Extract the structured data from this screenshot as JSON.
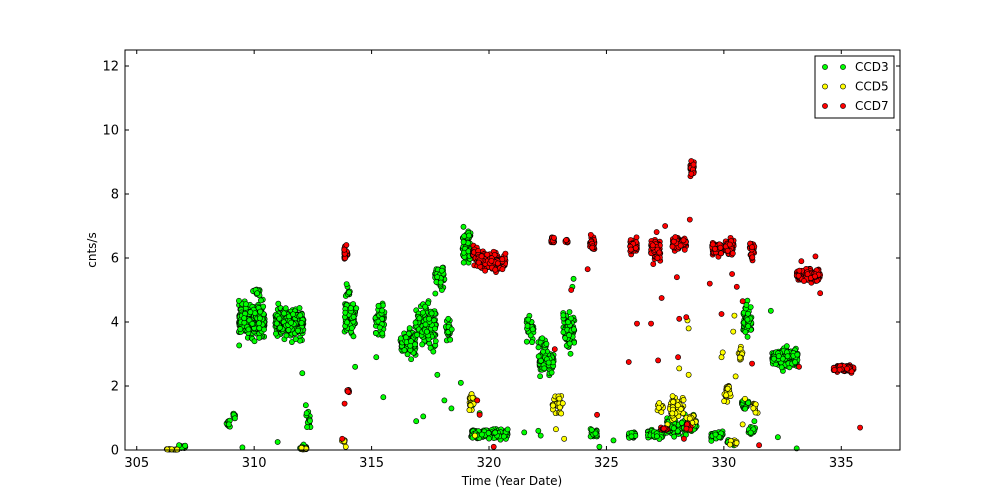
{
  "chart_data": {
    "type": "scatter",
    "title": "",
    "xlabel": "Time (Year Date)",
    "ylabel": "cnts/s",
    "xlim": [
      304.5,
      337.5
    ],
    "ylim": [
      0,
      12.5
    ],
    "xticks": [
      305,
      310,
      315,
      320,
      325,
      330,
      335
    ],
    "yticks": [
      0,
      2,
      4,
      6,
      8,
      10,
      12
    ],
    "grid": false,
    "legend_position": "top-right",
    "series": [
      {
        "name": "CCD3",
        "color": "#00ff00",
        "clusters": [
          [
            306.5,
            0.02,
            0.5,
            0.02,
            10
          ],
          [
            306.95,
            0.1,
            0.25,
            0.06,
            10
          ],
          [
            308.9,
            0.85,
            0.15,
            0.15,
            10
          ],
          [
            309.15,
            1.1,
            0.1,
            0.2,
            8
          ],
          [
            309.9,
            4.05,
            1.1,
            0.5,
            300
          ],
          [
            310.1,
            4.9,
            0.3,
            0.15,
            15
          ],
          [
            311.5,
            3.95,
            1.2,
            0.45,
            260
          ],
          [
            312.1,
            0.08,
            0.3,
            0.08,
            15
          ],
          [
            312.3,
            0.95,
            0.2,
            0.35,
            12
          ],
          [
            314.1,
            4.15,
            0.5,
            0.55,
            70
          ],
          [
            314.0,
            4.9,
            0.2,
            0.2,
            10
          ],
          [
            315.35,
            4.05,
            0.4,
            0.5,
            50
          ],
          [
            316.55,
            3.35,
            0.65,
            0.4,
            110
          ],
          [
            317.3,
            3.9,
            0.9,
            0.7,
            130
          ],
          [
            317.9,
            5.3,
            0.4,
            0.5,
            45
          ],
          [
            318.3,
            3.7,
            0.3,
            0.4,
            20
          ],
          [
            319.05,
            6.4,
            0.35,
            0.6,
            60
          ],
          [
            320.0,
            0.5,
            1.6,
            0.15,
            160
          ],
          [
            321.75,
            3.8,
            0.3,
            0.4,
            25
          ],
          [
            322.45,
            2.75,
            0.6,
            0.35,
            110
          ],
          [
            322.3,
            3.3,
            0.4,
            0.25,
            20
          ],
          [
            323.4,
            3.8,
            0.5,
            0.6,
            60
          ],
          [
            324.45,
            0.5,
            0.3,
            0.15,
            25
          ],
          [
            326.1,
            0.45,
            0.3,
            0.12,
            25
          ],
          [
            327.1,
            0.5,
            0.7,
            0.15,
            60
          ],
          [
            328.2,
            0.75,
            1.3,
            0.3,
            130
          ],
          [
            329.7,
            0.45,
            0.5,
            0.15,
            40
          ],
          [
            330.3,
            0.25,
            0.3,
            0.1,
            15
          ],
          [
            330.9,
            1.4,
            0.3,
            0.2,
            20
          ],
          [
            331.0,
            4.05,
            0.35,
            0.55,
            60
          ],
          [
            331.2,
            0.6,
            0.3,
            0.15,
            15
          ],
          [
            332.6,
            2.85,
            1.1,
            0.28,
            220
          ]
        ],
        "extra_points": [
          [
            306.8,
            0.15
          ],
          [
            309.5,
            0.08
          ],
          [
            311.0,
            0.25
          ],
          [
            312.05,
            2.4
          ],
          [
            312.2,
            1.4
          ],
          [
            314.3,
            2.6
          ],
          [
            315.5,
            1.65
          ],
          [
            315.2,
            2.9
          ],
          [
            317.8,
            2.35
          ],
          [
            318.4,
            1.3
          ],
          [
            318.1,
            1.55
          ],
          [
            318.8,
            2.1
          ],
          [
            319.3,
            1.4
          ],
          [
            316.9,
            0.9
          ],
          [
            317.2,
            1.05
          ],
          [
            319.6,
            1.15
          ],
          [
            321.5,
            0.55
          ],
          [
            322.1,
            0.6
          ],
          [
            322.85,
            1.45
          ],
          [
            323.55,
            5.1
          ],
          [
            323.6,
            5.35
          ],
          [
            322.2,
            0.45
          ],
          [
            324.7,
            0.1
          ],
          [
            325.3,
            0.3
          ],
          [
            332.0,
            4.35
          ],
          [
            332.3,
            0.4
          ],
          [
            333.1,
            0.05
          ],
          [
            331.3,
            0.9
          ]
        ]
      },
      {
        "name": "CCD5",
        "color": "#ffff00",
        "clusters": [
          [
            306.5,
            0.02,
            0.5,
            0.02,
            8
          ],
          [
            312.1,
            0.05,
            0.3,
            0.05,
            10
          ],
          [
            313.8,
            0.3,
            0.15,
            0.08,
            10
          ],
          [
            319.25,
            1.5,
            0.2,
            0.3,
            25
          ],
          [
            322.8,
            1.45,
            0.2,
            0.2,
            15
          ],
          [
            323.05,
            1.4,
            0.2,
            0.35,
            15
          ],
          [
            327.3,
            1.35,
            0.25,
            0.15,
            15
          ],
          [
            328.0,
            1.35,
            0.6,
            0.35,
            45
          ],
          [
            328.6,
            0.9,
            0.4,
            0.3,
            25
          ],
          [
            330.15,
            1.8,
            0.3,
            0.35,
            25
          ],
          [
            330.7,
            3.0,
            0.2,
            0.2,
            15
          ],
          [
            331.35,
            1.4,
            0.2,
            0.2,
            15
          ],
          [
            330.4,
            0.25,
            0.3,
            0.1,
            10
          ]
        ],
        "extra_points": [
          [
            313.9,
            0.1
          ],
          [
            319.4,
            0.45
          ],
          [
            322.85,
            0.65
          ],
          [
            323.2,
            0.35
          ],
          [
            327.6,
            0.8
          ],
          [
            328.1,
            2.55
          ],
          [
            328.5,
            2.35
          ],
          [
            328.45,
            4.05
          ],
          [
            328.5,
            3.8
          ],
          [
            329.9,
            2.9
          ],
          [
            329.95,
            3.05
          ],
          [
            330.4,
            3.7
          ],
          [
            330.45,
            4.2
          ],
          [
            330.8,
            0.8
          ],
          [
            330.5,
            2.3
          ],
          [
            330.9,
            1.6
          ]
        ]
      },
      {
        "name": "CCD7",
        "color": "#ff0000",
        "clusters": [
          [
            313.9,
            6.15,
            0.15,
            0.2,
            30
          ],
          [
            314.0,
            1.85,
            0.08,
            0.06,
            10
          ],
          [
            319.45,
            6.15,
            0.3,
            0.25,
            40
          ],
          [
            320.1,
            5.9,
            1.2,
            0.25,
            220
          ],
          [
            322.7,
            6.55,
            0.15,
            0.15,
            20
          ],
          [
            323.3,
            6.55,
            0.1,
            0.08,
            8
          ],
          [
            324.4,
            6.45,
            0.2,
            0.25,
            30
          ],
          [
            326.15,
            6.35,
            0.3,
            0.25,
            50
          ],
          [
            327.1,
            6.25,
            0.4,
            0.35,
            60
          ],
          [
            328.1,
            6.45,
            0.6,
            0.2,
            90
          ],
          [
            328.65,
            8.8,
            0.15,
            0.25,
            30
          ],
          [
            329.7,
            6.3,
            0.4,
            0.25,
            60
          ],
          [
            330.25,
            6.35,
            0.35,
            0.25,
            50
          ],
          [
            331.2,
            6.25,
            0.2,
            0.3,
            25
          ],
          [
            333.6,
            5.45,
            1.0,
            0.2,
            150
          ],
          [
            335.1,
            2.55,
            0.85,
            0.1,
            140
          ],
          [
            327.5,
            0.65,
            0.4,
            0.05,
            25
          ],
          [
            328.5,
            0.75,
            0.2,
            0.08,
            10
          ]
        ],
        "extra_points": [
          [
            313.85,
            1.45
          ],
          [
            313.75,
            0.35
          ],
          [
            319.5,
            1.55
          ],
          [
            319.6,
            1.1
          ],
          [
            320.2,
            0.1
          ],
          [
            322.8,
            3.15
          ],
          [
            323.5,
            5.0
          ],
          [
            324.2,
            5.65
          ],
          [
            324.6,
            1.1
          ],
          [
            325.95,
            2.75
          ],
          [
            326.3,
            3.95
          ],
          [
            326.9,
            3.95
          ],
          [
            327.2,
            2.8
          ],
          [
            327.35,
            4.75
          ],
          [
            327.5,
            7.0
          ],
          [
            328.0,
            5.4
          ],
          [
            328.1,
            4.1
          ],
          [
            328.4,
            4.15
          ],
          [
            328.55,
            7.2
          ],
          [
            328.05,
            2.9
          ],
          [
            328.3,
            0.35
          ],
          [
            329.4,
            5.2
          ],
          [
            329.9,
            4.25
          ],
          [
            330.35,
            5.5
          ],
          [
            330.55,
            5.1
          ],
          [
            330.8,
            4.65
          ],
          [
            331.5,
            0.15
          ],
          [
            331.2,
            2.7
          ],
          [
            333.2,
            2.6
          ],
          [
            333.3,
            5.9
          ],
          [
            333.9,
            6.05
          ],
          [
            334.1,
            4.9
          ],
          [
            335.8,
            0.7
          ]
        ]
      }
    ]
  }
}
